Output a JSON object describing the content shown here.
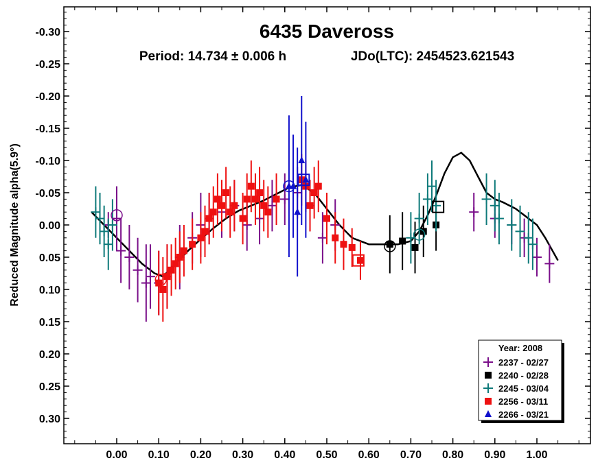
{
  "chart_data": {
    "type": "scatter",
    "title": "6435 Daveross",
    "subtitle_period": "Period: 14.734 ± 0.006 h",
    "subtitle_epoch": "JDo(LTC): 2454523.621543",
    "ylabel": "Reduced Magnitude alpha(5.9°)",
    "xlabel": "",
    "xlim": [
      -0.1,
      1.12
    ],
    "ylim": [
      0.35,
      -0.35
    ],
    "y_inverted": true,
    "x_ticks": [
      "0.00",
      "0.10",
      "0.20",
      "0.30",
      "0.40",
      "0.50",
      "0.60",
      "0.70",
      "0.80",
      "0.90",
      "1.00"
    ],
    "x_tick_values": [
      0,
      0.1,
      0.2,
      0.3,
      0.4,
      0.5,
      0.6,
      0.7,
      0.8,
      0.9,
      1.0
    ],
    "y_ticks": [
      "-0.30",
      "-0.25",
      "-0.20",
      "-0.15",
      "-0.10",
      "-0.05",
      "0.00",
      "0.05",
      "0.10",
      "0.15",
      "0.20",
      "0.25",
      "0.30"
    ],
    "y_tick_values": [
      -0.3,
      -0.25,
      -0.2,
      -0.15,
      -0.1,
      -0.05,
      0,
      0.05,
      0.1,
      0.15,
      0.2,
      0.25,
      0.3
    ],
    "grid": false,
    "legend": {
      "title": "Year: 2008",
      "placement": "bottom-right",
      "entries": [
        {
          "label": "2237 - 02/27",
          "marker": "plus",
          "color": "#7a0f8a"
        },
        {
          "label": "2240 - 02/28",
          "marker": "square",
          "color": "#000000"
        },
        {
          "label": "2245 - 03/04",
          "marker": "plus",
          "color": "#0e7a7a"
        },
        {
          "label": "2256 - 03/11",
          "marker": "square",
          "color": "#ee1111"
        },
        {
          "label": "2266 - 03/21",
          "marker": "triangle",
          "color": "#1010cc"
        }
      ]
    },
    "fit_curve": {
      "color": "#000000",
      "x": [
        -0.06,
        -0.03,
        0.0,
        0.03,
        0.06,
        0.09,
        0.11,
        0.14,
        0.17,
        0.2,
        0.23,
        0.26,
        0.29,
        0.32,
        0.35,
        0.38,
        0.41,
        0.44,
        0.47,
        0.5,
        0.53,
        0.56,
        0.6,
        0.64,
        0.67,
        0.7,
        0.72,
        0.74,
        0.76,
        0.78,
        0.8,
        0.82,
        0.84,
        0.86,
        0.88,
        0.9,
        0.92,
        0.95,
        0.98,
        1.0,
        1.02,
        1.05
      ],
      "y": [
        -0.02,
        0.0,
        0.02,
        0.04,
        0.06,
        0.075,
        0.08,
        0.06,
        0.04,
        0.022,
        0.005,
        -0.01,
        -0.022,
        -0.03,
        -0.038,
        -0.048,
        -0.058,
        -0.062,
        -0.05,
        -0.025,
        0.0,
        0.02,
        0.03,
        0.03,
        0.03,
        0.025,
        0.01,
        -0.015,
        -0.045,
        -0.08,
        -0.105,
        -0.112,
        -0.1,
        -0.075,
        -0.05,
        -0.04,
        -0.035,
        -0.025,
        -0.01,
        0.0,
        0.02,
        0.055
      ]
    },
    "series": [
      {
        "name": "2237 - 02/27",
        "marker": "plus",
        "color": "#7a0f8a",
        "x": [
          -0.02,
          0.0,
          0.01,
          0.03,
          0.05,
          0.07,
          0.08,
          0.1,
          0.12,
          0.15,
          0.18,
          0.2,
          0.22,
          0.25,
          0.28,
          0.31,
          0.34,
          0.37,
          0.4,
          0.43,
          0.46,
          0.49,
          0.52,
          0.85,
          0.9,
          0.94,
          0.97,
          1.0,
          1.03
        ],
        "y": [
          0.0,
          -0.01,
          0.04,
          0.05,
          0.07,
          0.09,
          0.08,
          0.09,
          0.08,
          0.05,
          0.02,
          0.0,
          -0.01,
          -0.02,
          -0.03,
          0.0,
          -0.01,
          -0.03,
          -0.04,
          -0.05,
          -0.03,
          0.02,
          0.0,
          -0.02,
          -0.01,
          0.0,
          0.02,
          0.05,
          0.06
        ],
        "err": [
          0.02,
          0.05,
          0.05,
          0.05,
          0.05,
          0.06,
          0.05,
          0.05,
          0.05,
          0.05,
          0.04,
          0.05,
          0.04,
          0.04,
          0.04,
          0.04,
          0.04,
          0.04,
          0.04,
          0.04,
          0.04,
          0.04,
          0.04,
          0.03,
          0.03,
          0.03,
          0.03,
          0.03,
          0.03
        ]
      },
      {
        "name": "2240 - 02/28",
        "marker": "square",
        "color": "#000000",
        "x": [
          0.65,
          0.68,
          0.71,
          0.73,
          0.76
        ],
        "y": [
          0.03,
          0.025,
          0.035,
          0.01,
          0.0
        ],
        "err": [
          0.045,
          0.045,
          0.04,
          0.04,
          0.04
        ]
      },
      {
        "name": "2245 - 03/04",
        "marker": "plus",
        "color": "#0e7a7a",
        "x": [
          -0.05,
          -0.04,
          -0.03,
          -0.02,
          -0.01,
          0.7,
          0.72,
          0.74,
          0.75,
          0.76,
          0.88,
          0.9,
          0.91,
          0.94,
          0.96,
          0.98,
          0.99
        ],
        "y": [
          -0.02,
          -0.01,
          0.01,
          0.03,
          0.0,
          0.02,
          -0.01,
          -0.04,
          -0.06,
          -0.03,
          -0.04,
          -0.03,
          -0.01,
          0.0,
          0.01,
          0.02,
          0.03
        ],
        "err": [
          0.04,
          0.04,
          0.04,
          0.04,
          0.04,
          0.04,
          0.04,
          0.04,
          0.04,
          0.04,
          0.04,
          0.04,
          0.04,
          0.04,
          0.04,
          0.04,
          0.04
        ]
      },
      {
        "name": "2256 - 03/11",
        "marker": "square",
        "color": "#ee1111",
        "x": [
          0.1,
          0.11,
          0.12,
          0.13,
          0.14,
          0.15,
          0.16,
          0.18,
          0.2,
          0.21,
          0.22,
          0.23,
          0.24,
          0.25,
          0.26,
          0.27,
          0.28,
          0.3,
          0.31,
          0.32,
          0.33,
          0.34,
          0.35,
          0.36,
          0.38,
          0.44,
          0.45,
          0.46,
          0.47,
          0.48,
          0.5,
          0.52,
          0.54,
          0.56,
          0.58
        ],
        "y": [
          0.09,
          0.1,
          0.08,
          0.07,
          0.06,
          0.05,
          0.04,
          0.03,
          0.02,
          0.01,
          -0.01,
          -0.02,
          -0.04,
          -0.03,
          -0.05,
          -0.02,
          -0.03,
          -0.01,
          -0.04,
          -0.06,
          -0.04,
          -0.05,
          -0.03,
          -0.02,
          -0.04,
          -0.07,
          -0.06,
          -0.03,
          -0.05,
          -0.06,
          -0.01,
          0.02,
          0.03,
          0.035,
          0.055
        ],
        "err": [
          0.05,
          0.05,
          0.05,
          0.04,
          0.04,
          0.04,
          0.04,
          0.04,
          0.04,
          0.04,
          0.04,
          0.04,
          0.04,
          0.04,
          0.04,
          0.04,
          0.04,
          0.04,
          0.04,
          0.04,
          0.04,
          0.04,
          0.04,
          0.04,
          0.04,
          0.04,
          0.04,
          0.04,
          0.04,
          0.04,
          0.04,
          0.04,
          0.04,
          0.03,
          0.03
        ]
      },
      {
        "name": "2266 - 03/21",
        "marker": "triangle",
        "color": "#1010cc",
        "x": [
          0.41,
          0.42,
          0.43,
          0.44,
          0.45
        ],
        "y": [
          -0.06,
          -0.06,
          -0.02,
          -0.1,
          -0.07
        ],
        "err": [
          0.11,
          0.08,
          0.1,
          0.1,
          0.09
        ]
      }
    ],
    "circled_points": [
      {
        "x": 0.0,
        "y": -0.015,
        "color": "#7a0f8a"
      },
      {
        "x": 0.105,
        "y": 0.085,
        "color": "#ee1111"
      },
      {
        "x": 0.41,
        "y": -0.06,
        "color": "#1010cc"
      },
      {
        "x": 0.65,
        "y": 0.033,
        "color": "#000000"
      },
      {
        "x": 0.72,
        "y": 0.015,
        "color": "#0e7a7a"
      }
    ],
    "boxed_points": [
      {
        "x": 0.445,
        "y": -0.07,
        "color": "#1010cc"
      },
      {
        "x": 0.575,
        "y": 0.055,
        "color": "#ee1111"
      },
      {
        "x": 0.765,
        "y": -0.028,
        "color": "#000000"
      }
    ]
  }
}
